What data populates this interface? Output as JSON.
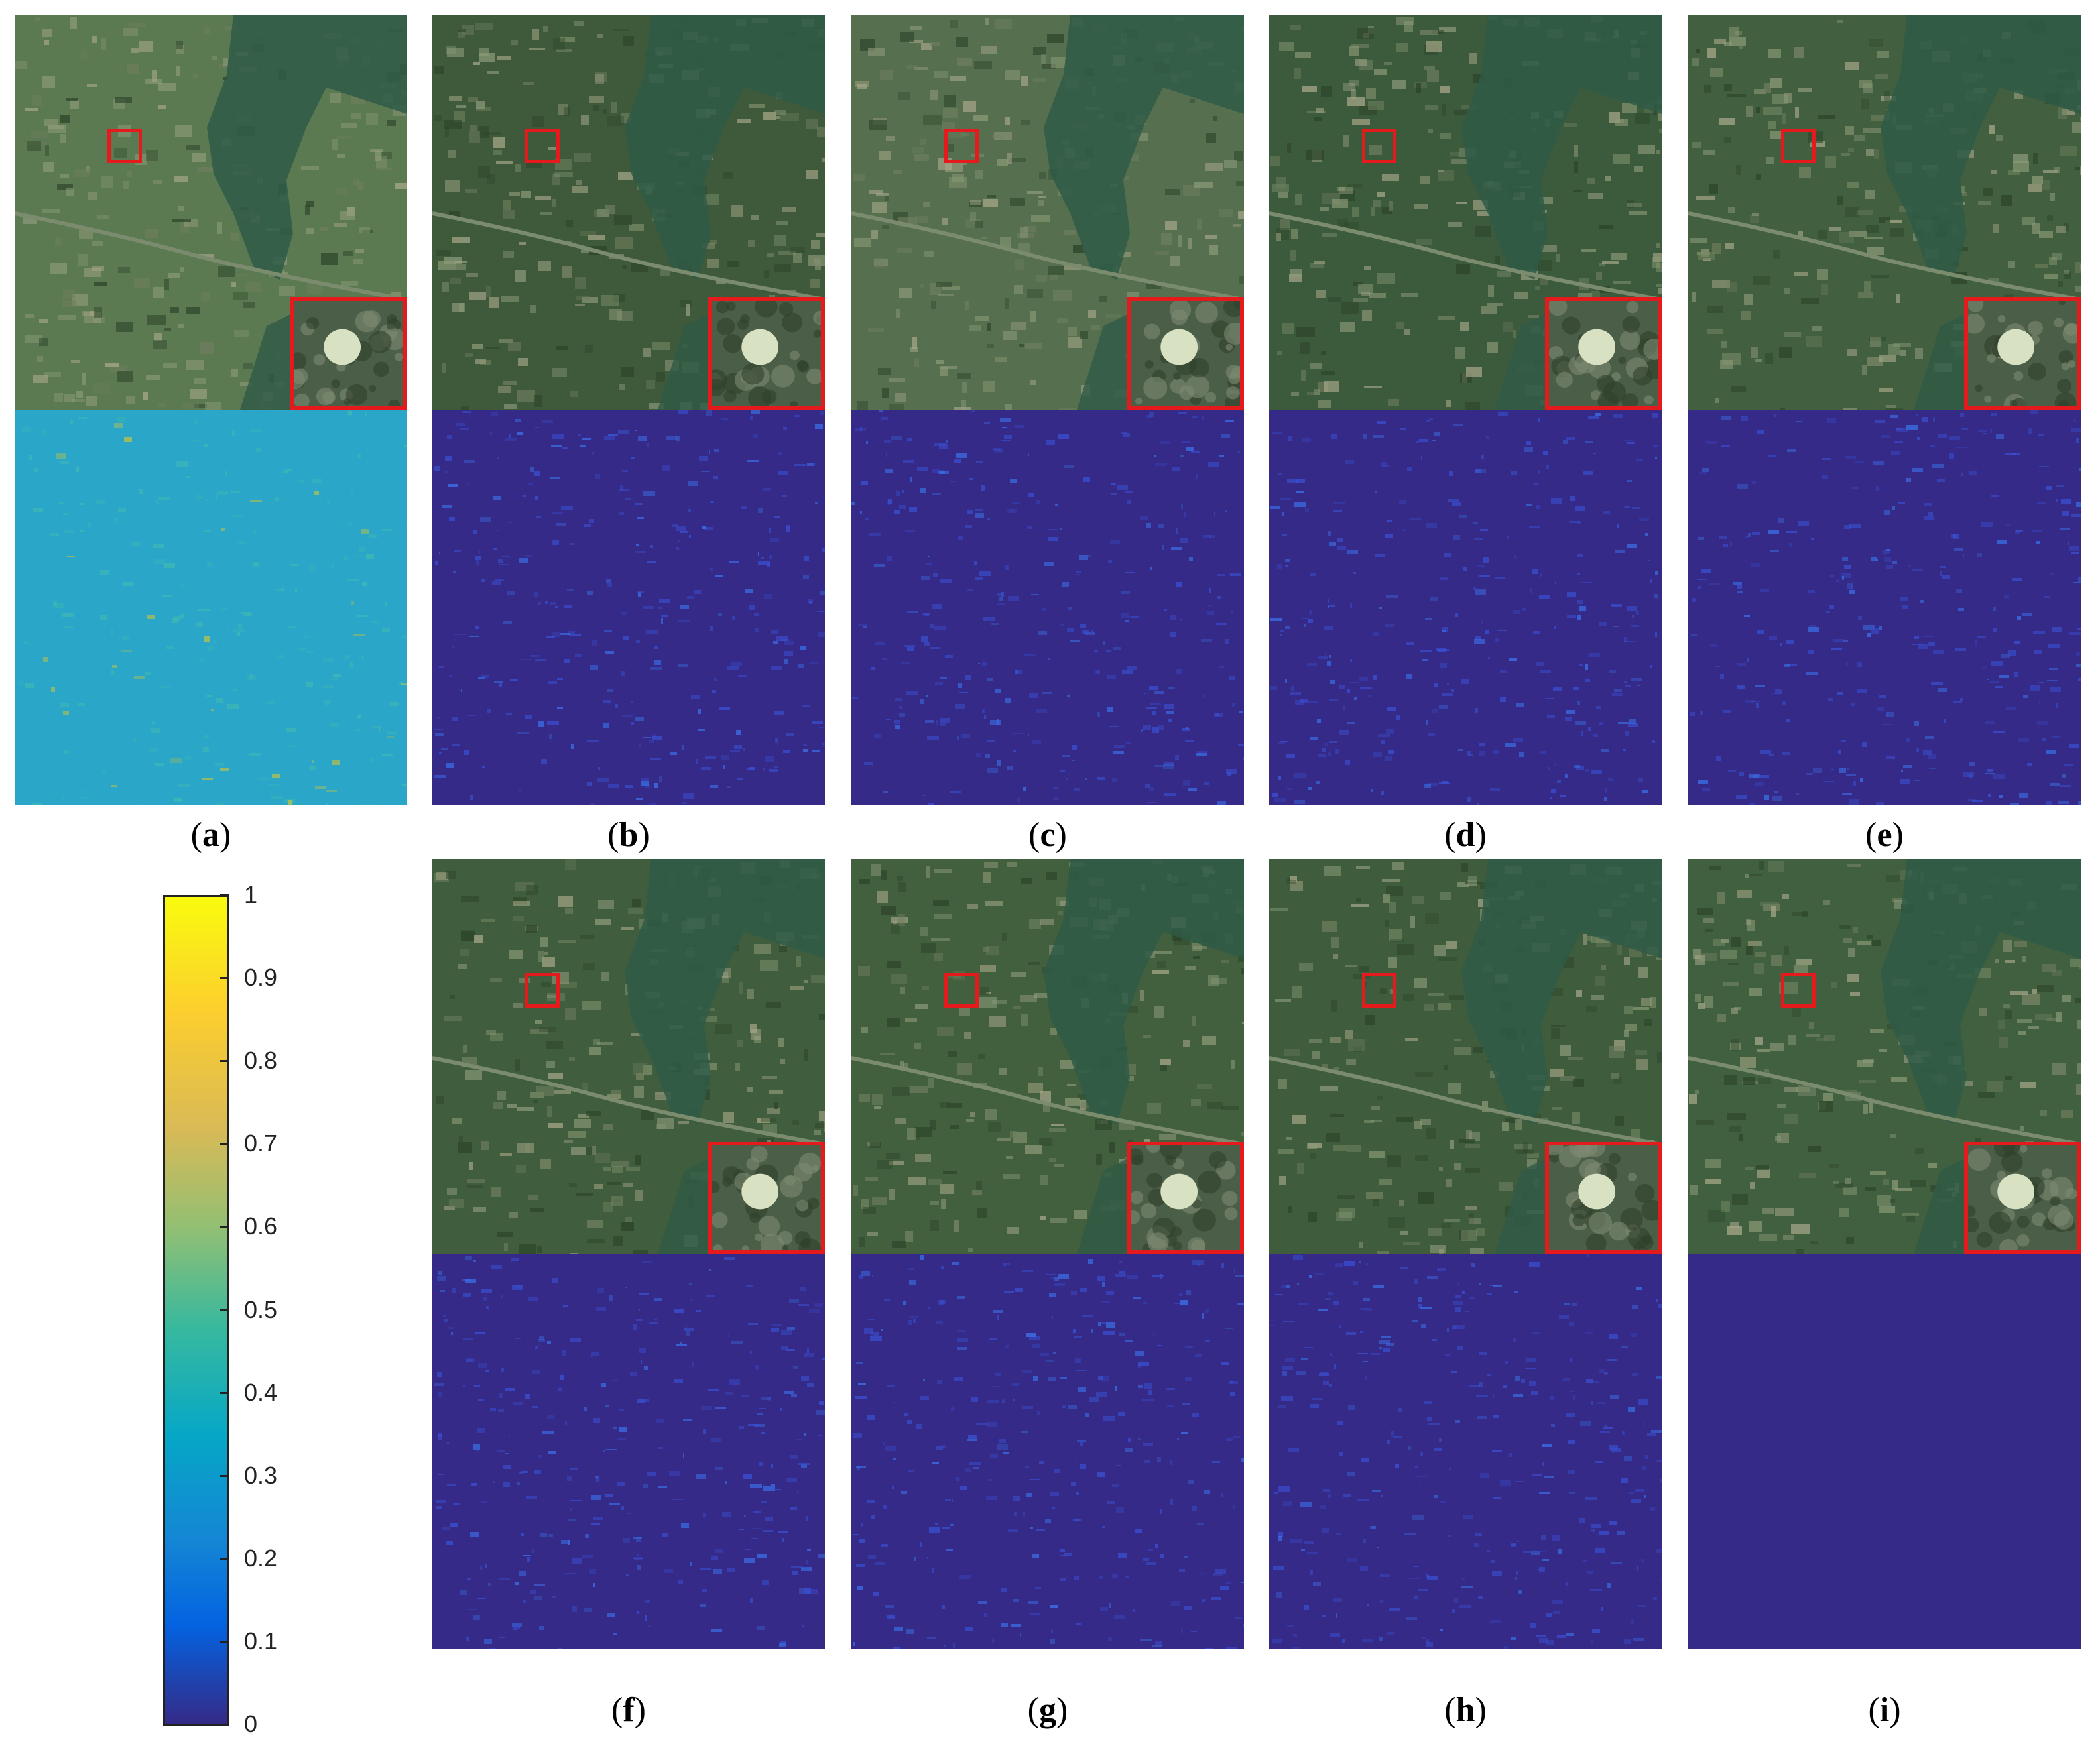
{
  "panels": [
    {
      "id": "a",
      "label": "a",
      "errmap": "cyan",
      "photo_tone": "#5b7a52"
    },
    {
      "id": "b",
      "label": "b",
      "errmap": "blue",
      "photo_tone": "#3f5a3b"
    },
    {
      "id": "c",
      "label": "c",
      "errmap": "blue",
      "photo_tone": "#56704f"
    },
    {
      "id": "d",
      "label": "d",
      "errmap": "blue",
      "photo_tone": "#3c5a3c"
    },
    {
      "id": "e",
      "label": "e",
      "errmap": "blue",
      "photo_tone": "#42603f"
    },
    {
      "id": "f",
      "label": "f",
      "errmap": "blue",
      "photo_tone": "#405e3d"
    },
    {
      "id": "g",
      "label": "g",
      "errmap": "blue",
      "photo_tone": "#425f3e"
    },
    {
      "id": "h",
      "label": "h",
      "errmap": "blue",
      "photo_tone": "#3f5d3d"
    },
    {
      "id": "i",
      "label": "i",
      "errmap": "flat",
      "photo_tone": "#41603f"
    }
  ],
  "colorbar": {
    "ticks": [
      "1",
      "0.9",
      "0.8",
      "0.7",
      "0.6",
      "0.5",
      "0.4",
      "0.3",
      "0.2",
      "0.1",
      "0"
    ],
    "colormap": "parula"
  },
  "colors": {
    "roi_border": "#e41a1c",
    "error_low": "#352a87",
    "error_cyan": "#2aa6c8"
  }
}
